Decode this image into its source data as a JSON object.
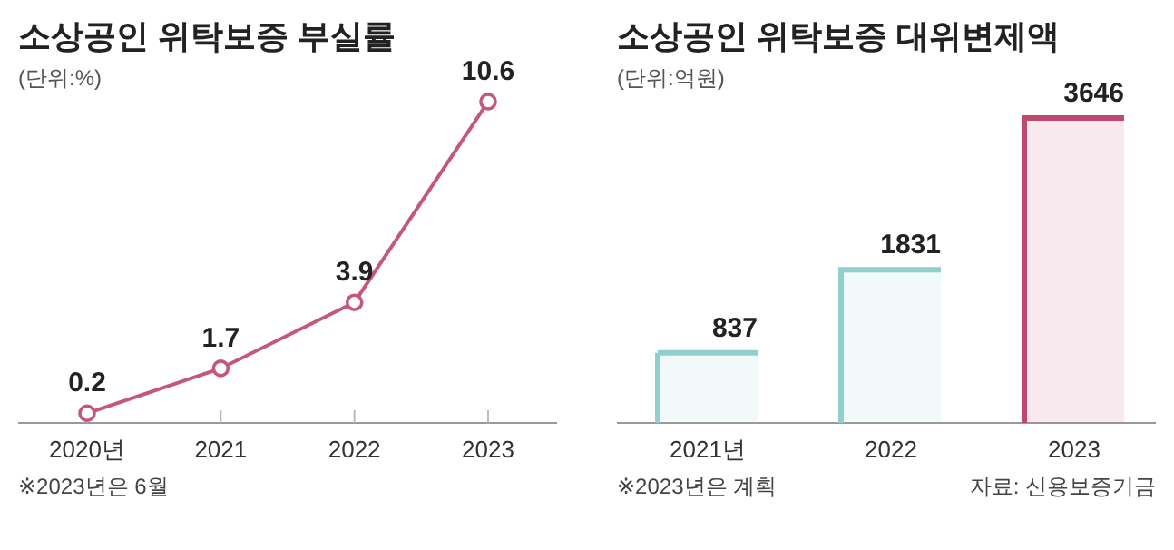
{
  "chart_data": [
    {
      "type": "line",
      "title": "소상공인 위탁보증 부실률",
      "subtitle": "(단위:%)",
      "categories": [
        "2020년",
        "2021",
        "2022",
        "2023"
      ],
      "series": [
        {
          "color": "#c5587a",
          "values": [
            0.2,
            1.7,
            3.9,
            10.6
          ]
        }
      ],
      "marker": "circle",
      "data_labels": true,
      "annotations": [
        "※2023년은 6월"
      ]
    },
    {
      "type": "bar",
      "title": "소상공인 위탁보증 대위변제액",
      "subtitle": "(단위:억원)",
      "categories": [
        "2021년",
        "2022",
        "2023"
      ],
      "values": [
        837,
        1831,
        3646
      ],
      "colors": [
        "#8fd0cc",
        "#8fd0cc",
        "#c04a6e"
      ],
      "data_labels": true,
      "annotations": [
        "※2023년은 계획",
        "자료: 신용보증기금"
      ]
    }
  ]
}
